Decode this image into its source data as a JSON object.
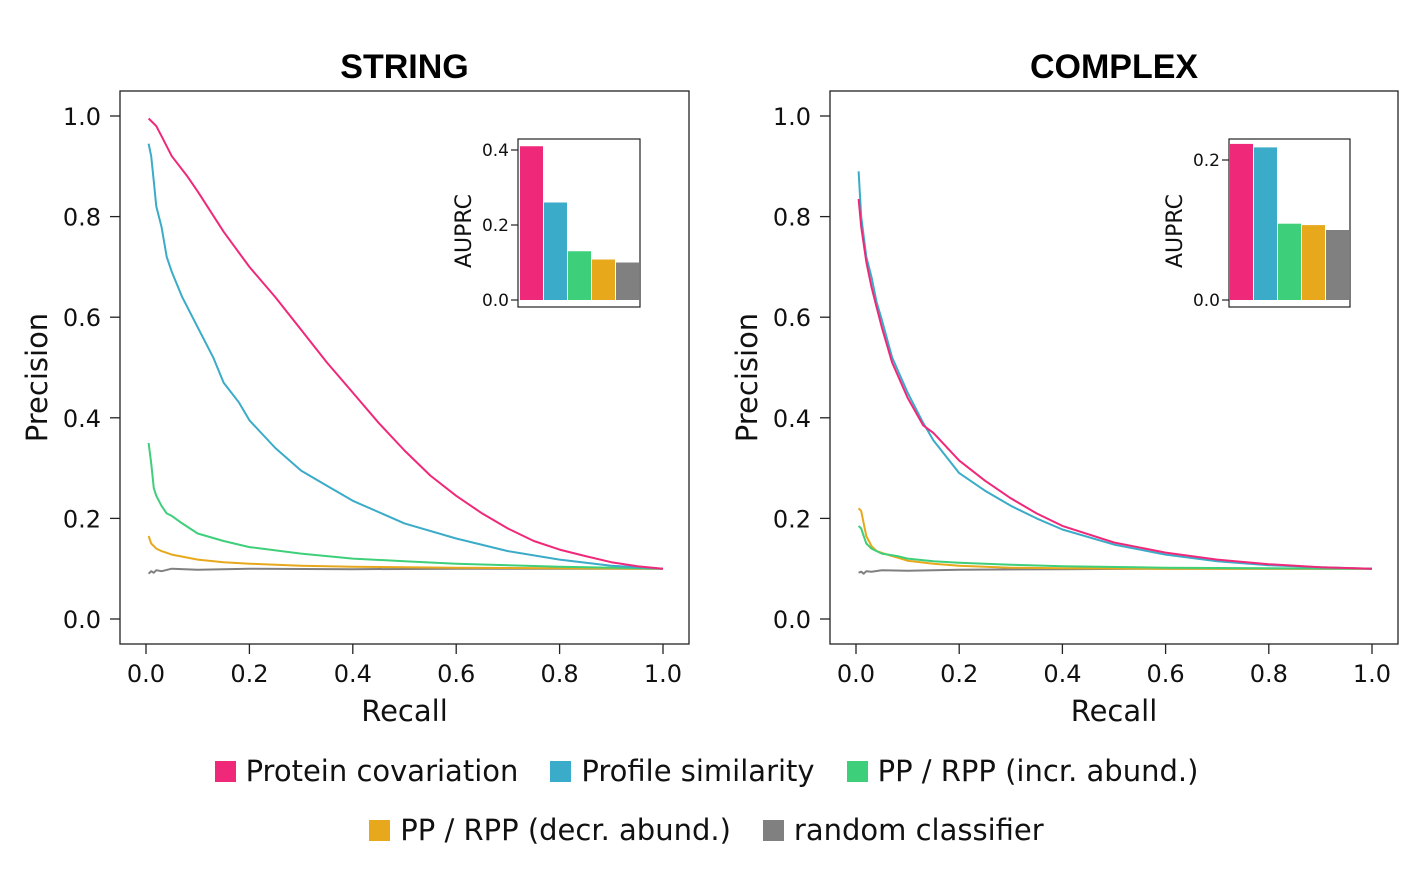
{
  "series_info": [
    {
      "key": "protein_covariation",
      "name": "Protein covariation",
      "color": "#f0287a"
    },
    {
      "key": "profile_similarity",
      "name": "Profile similarity",
      "color": "#3aabc8"
    },
    {
      "key": "pp_rpp_incr",
      "name": "PP / RPP (incr. abund.)",
      "color": "#3ecf7a"
    },
    {
      "key": "pp_rpp_decr",
      "name": "PP / RPP (decr. abund.)",
      "color": "#e8a81c"
    },
    {
      "key": "random",
      "name": "random classifier",
      "color": "#808080"
    }
  ],
  "legend": {
    "row1": [
      "Protein covariation",
      "Profile similarity",
      "PP / RPP (incr. abund.)"
    ],
    "row2": [
      "PP / RPP (decr. abund.)",
      "random classifier"
    ]
  },
  "chart_data": [
    {
      "type": "line",
      "title": "STRING",
      "xlabel": "Recall",
      "ylabel": "Precision",
      "xlim": [
        0,
        1
      ],
      "ylim": [
        0,
        1
      ],
      "xticks": [
        "0.0",
        "0.2",
        "0.4",
        "0.6",
        "0.8",
        "1.0"
      ],
      "yticks": [
        "0.0",
        "0.2",
        "0.4",
        "0.6",
        "0.8",
        "1.0"
      ],
      "series": [
        {
          "name": "Protein covariation",
          "x": [
            0.005,
            0.01,
            0.02,
            0.03,
            0.05,
            0.08,
            0.1,
            0.15,
            0.2,
            0.25,
            0.3,
            0.35,
            0.4,
            0.45,
            0.5,
            0.55,
            0.6,
            0.65,
            0.7,
            0.75,
            0.8,
            0.85,
            0.9,
            0.95,
            1.0
          ],
          "y": [
            0.995,
            0.99,
            0.98,
            0.96,
            0.92,
            0.88,
            0.85,
            0.77,
            0.7,
            0.64,
            0.575,
            0.51,
            0.45,
            0.39,
            0.335,
            0.285,
            0.245,
            0.21,
            0.18,
            0.155,
            0.138,
            0.125,
            0.113,
            0.105,
            0.1
          ]
        },
        {
          "name": "Profile similarity",
          "x": [
            0.005,
            0.01,
            0.015,
            0.02,
            0.03,
            0.04,
            0.05,
            0.07,
            0.1,
            0.13,
            0.15,
            0.18,
            0.2,
            0.25,
            0.3,
            0.35,
            0.4,
            0.5,
            0.6,
            0.7,
            0.8,
            0.9,
            1.0
          ],
          "y": [
            0.945,
            0.92,
            0.87,
            0.82,
            0.78,
            0.72,
            0.69,
            0.64,
            0.58,
            0.52,
            0.47,
            0.43,
            0.395,
            0.34,
            0.295,
            0.265,
            0.235,
            0.19,
            0.16,
            0.135,
            0.118,
            0.106,
            0.1
          ]
        },
        {
          "name": "PP / RPP (incr. abund.)",
          "x": [
            0.005,
            0.01,
            0.015,
            0.02,
            0.03,
            0.04,
            0.05,
            0.07,
            0.1,
            0.15,
            0.2,
            0.3,
            0.4,
            0.5,
            0.6,
            0.8,
            1.0
          ],
          "y": [
            0.35,
            0.31,
            0.26,
            0.245,
            0.225,
            0.21,
            0.205,
            0.19,
            0.17,
            0.155,
            0.143,
            0.13,
            0.12,
            0.115,
            0.11,
            0.104,
            0.1
          ]
        },
        {
          "name": "PP / RPP (decr. abund.)",
          "x": [
            0.005,
            0.01,
            0.02,
            0.03,
            0.05,
            0.08,
            0.1,
            0.15,
            0.2,
            0.3,
            0.4,
            0.6,
            0.8,
            1.0
          ],
          "y": [
            0.165,
            0.15,
            0.14,
            0.135,
            0.128,
            0.122,
            0.118,
            0.113,
            0.11,
            0.106,
            0.104,
            0.102,
            0.101,
            0.1
          ]
        },
        {
          "name": "random classifier",
          "x": [
            0.005,
            0.01,
            0.015,
            0.02,
            0.03,
            0.05,
            0.1,
            0.2,
            0.4,
            0.6,
            0.8,
            1.0
          ],
          "y": [
            0.09,
            0.095,
            0.092,
            0.097,
            0.095,
            0.1,
            0.098,
            0.1,
            0.099,
            0.1,
            0.1,
            0.1
          ]
        }
      ],
      "inset": {
        "type": "bar",
        "ylabel": "AUPRC",
        "ylim": [
          0,
          0.43
        ],
        "yticks": [
          "0.0",
          "0.2",
          "0.4"
        ],
        "categories": [
          "Protein covariation",
          "Profile similarity",
          "PP / RPP (incr. abund.)",
          "PP / RPP (decr. abund.)",
          "random classifier"
        ],
        "values": [
          0.41,
          0.26,
          0.13,
          0.108,
          0.1
        ]
      }
    },
    {
      "type": "line",
      "title": "COMPLEX",
      "xlabel": "Recall",
      "ylabel": "Precision",
      "xlim": [
        0,
        1
      ],
      "ylim": [
        0,
        1
      ],
      "xticks": [
        "0.0",
        "0.2",
        "0.4",
        "0.6",
        "0.8",
        "1.0"
      ],
      "yticks": [
        "0.0",
        "0.2",
        "0.4",
        "0.6",
        "0.8",
        "1.0"
      ],
      "series": [
        {
          "name": "Protein covariation",
          "x": [
            0.005,
            0.01,
            0.02,
            0.03,
            0.04,
            0.05,
            0.07,
            0.1,
            0.13,
            0.15,
            0.2,
            0.25,
            0.3,
            0.35,
            0.4,
            0.5,
            0.6,
            0.7,
            0.8,
            0.9,
            1.0
          ],
          "y": [
            0.835,
            0.78,
            0.71,
            0.66,
            0.62,
            0.58,
            0.51,
            0.44,
            0.385,
            0.37,
            0.315,
            0.275,
            0.24,
            0.21,
            0.185,
            0.152,
            0.132,
            0.118,
            0.109,
            0.103,
            0.1
          ]
        },
        {
          "name": "Profile similarity",
          "x": [
            0.005,
            0.01,
            0.02,
            0.03,
            0.04,
            0.05,
            0.07,
            0.1,
            0.13,
            0.15,
            0.2,
            0.25,
            0.3,
            0.35,
            0.4,
            0.5,
            0.6,
            0.7,
            0.8,
            0.9,
            1.0
          ],
          "y": [
            0.89,
            0.8,
            0.72,
            0.68,
            0.63,
            0.595,
            0.52,
            0.45,
            0.39,
            0.355,
            0.29,
            0.255,
            0.225,
            0.2,
            0.178,
            0.148,
            0.128,
            0.115,
            0.107,
            0.103,
            0.1
          ]
        },
        {
          "name": "PP / RPP (incr. abund.)",
          "x": [
            0.005,
            0.01,
            0.015,
            0.02,
            0.03,
            0.05,
            0.08,
            0.1,
            0.15,
            0.2,
            0.3,
            0.4,
            0.6,
            0.8,
            1.0
          ],
          "y": [
            0.185,
            0.18,
            0.165,
            0.15,
            0.14,
            0.13,
            0.125,
            0.12,
            0.115,
            0.112,
            0.108,
            0.105,
            0.102,
            0.101,
            0.1
          ]
        },
        {
          "name": "PP / RPP (decr. abund.)",
          "x": [
            0.005,
            0.01,
            0.015,
            0.02,
            0.03,
            0.04,
            0.06,
            0.08,
            0.1,
            0.15,
            0.2,
            0.3,
            0.4,
            0.6,
            0.8,
            1.0
          ],
          "y": [
            0.22,
            0.215,
            0.19,
            0.165,
            0.145,
            0.135,
            0.128,
            0.122,
            0.116,
            0.11,
            0.106,
            0.102,
            0.101,
            0.1,
            0.1,
            0.1
          ]
        },
        {
          "name": "random classifier",
          "x": [
            0.005,
            0.01,
            0.015,
            0.02,
            0.03,
            0.05,
            0.1,
            0.2,
            0.4,
            0.6,
            0.8,
            1.0
          ],
          "y": [
            0.092,
            0.094,
            0.09,
            0.095,
            0.094,
            0.097,
            0.096,
            0.098,
            0.099,
            0.1,
            0.1,
            0.1
          ]
        }
      ],
      "inset": {
        "type": "bar",
        "ylabel": "AUPRC",
        "ylim": [
          0,
          0.235
        ],
        "yticks": [
          "0.0",
          "0.2"
        ],
        "categories": [
          "Protein covariation",
          "Profile similarity",
          "PP / RPP (incr. abund.)",
          "PP / RPP (decr. abund.)",
          "random classifier"
        ],
        "values": [
          0.223,
          0.218,
          0.109,
          0.107,
          0.1
        ]
      }
    }
  ]
}
